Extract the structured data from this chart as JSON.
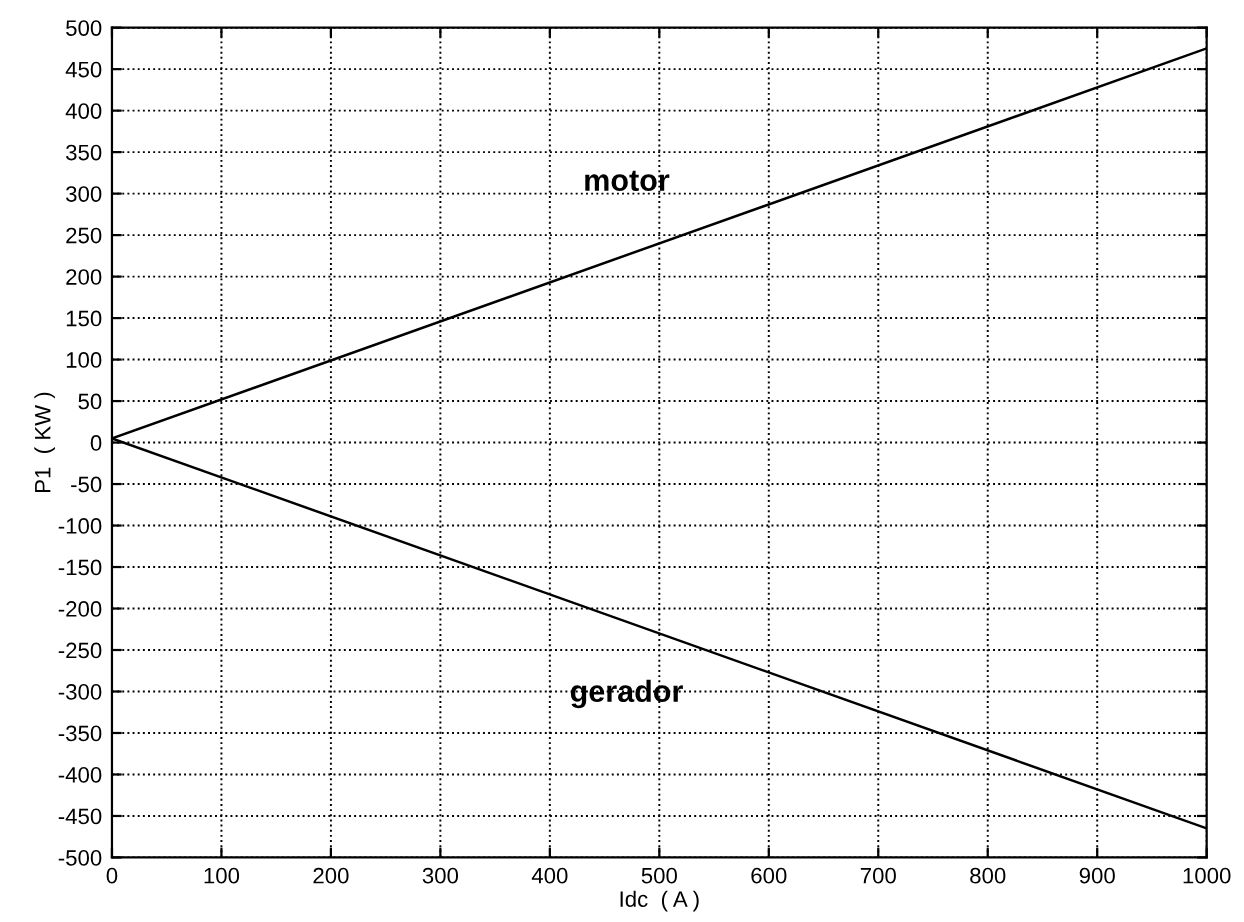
{
  "chart_data": {
    "type": "line",
    "xlabel": "Idc  ( A )",
    "ylabel": "P1  ( KW )",
    "x": [
      0,
      1000
    ],
    "series": [
      {
        "name": "motor",
        "color": "#000000",
        "values": [
          5,
          475
        ]
      },
      {
        "name": "gerador",
        "color": "#000000",
        "values": [
          5,
          -465
        ]
      }
    ],
    "xlim": [
      0,
      1000
    ],
    "xticks": [
      0,
      100,
      200,
      300,
      400,
      500,
      600,
      700,
      800,
      900,
      1000
    ],
    "ylim": [
      -500,
      500
    ],
    "yticks": [
      -500,
      -450,
      -400,
      -350,
      -300,
      -250,
      -200,
      -150,
      -100,
      -50,
      0,
      50,
      100,
      150,
      200,
      250,
      300,
      350,
      400,
      450,
      500
    ],
    "grid": true,
    "line_style": "solid",
    "marker": "none"
  }
}
